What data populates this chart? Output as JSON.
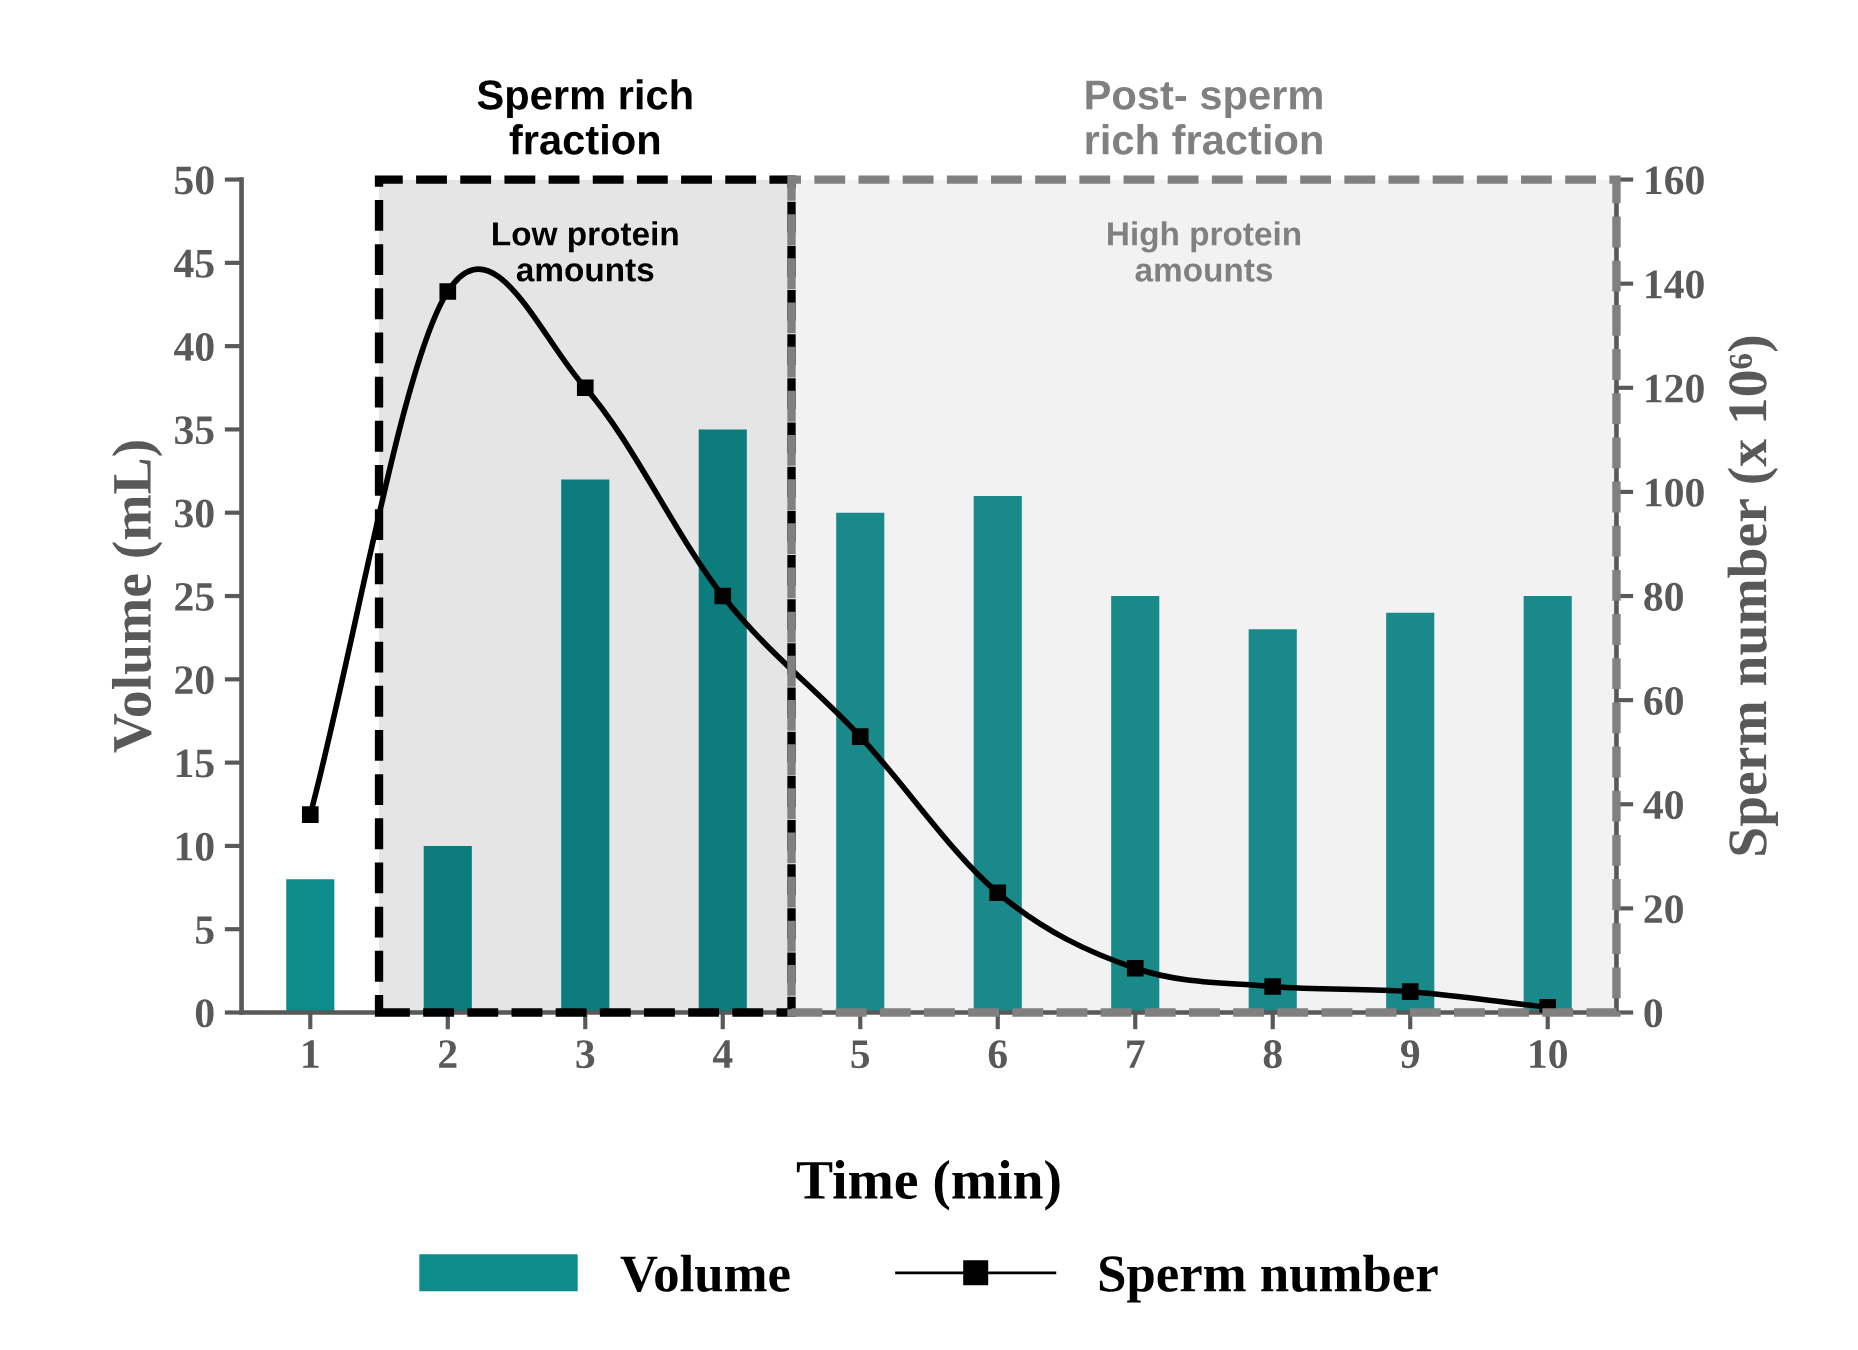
{
  "chart_data": {
    "type": "bar",
    "xlabel": "Time (min)",
    "ylabel": "Volume (mL)",
    "y2label": "Sperm number (x 10⁶)",
    "x": [
      1,
      2,
      3,
      4,
      5,
      6,
      7,
      8,
      9,
      10
    ],
    "xlim": [
      0.5,
      10.5
    ],
    "xticks": [
      1,
      2,
      3,
      4,
      5,
      6,
      7,
      8,
      9,
      10
    ],
    "ylim": [
      0,
      50
    ],
    "yticks": [
      0,
      5,
      10,
      15,
      20,
      25,
      30,
      35,
      40,
      45,
      50
    ],
    "y2lim": [
      0,
      160
    ],
    "y2ticks": [
      0,
      20,
      40,
      60,
      80,
      100,
      120,
      140,
      160
    ],
    "series": [
      {
        "name": "Volume",
        "color": "#0e8b8b",
        "values": [
          8,
          10,
          32,
          35,
          30,
          31,
          25,
          23,
          24,
          25
        ]
      },
      {
        "name": "Sperm number",
        "type": "line",
        "axis": "y2",
        "color": "#000000",
        "marker": "square",
        "line_style": "solid",
        "values": [
          38,
          138.5,
          120,
          80,
          53,
          23,
          8.5,
          5,
          4,
          1
        ]
      }
    ],
    "bands": [
      {
        "axis": "x",
        "from": 1.5,
        "to": 4.5,
        "label": "Sperm rich\nfraction",
        "color": "#000000"
      },
      {
        "axis": "x",
        "from": 4.5,
        "to": 10.5,
        "label": "Post- sperm\nrich fraction",
        "color": "#808080"
      }
    ],
    "annotations": [
      "Low protein\namounts",
      "High protein\namounts"
    ],
    "grid": false,
    "legend": "bottom"
  }
}
